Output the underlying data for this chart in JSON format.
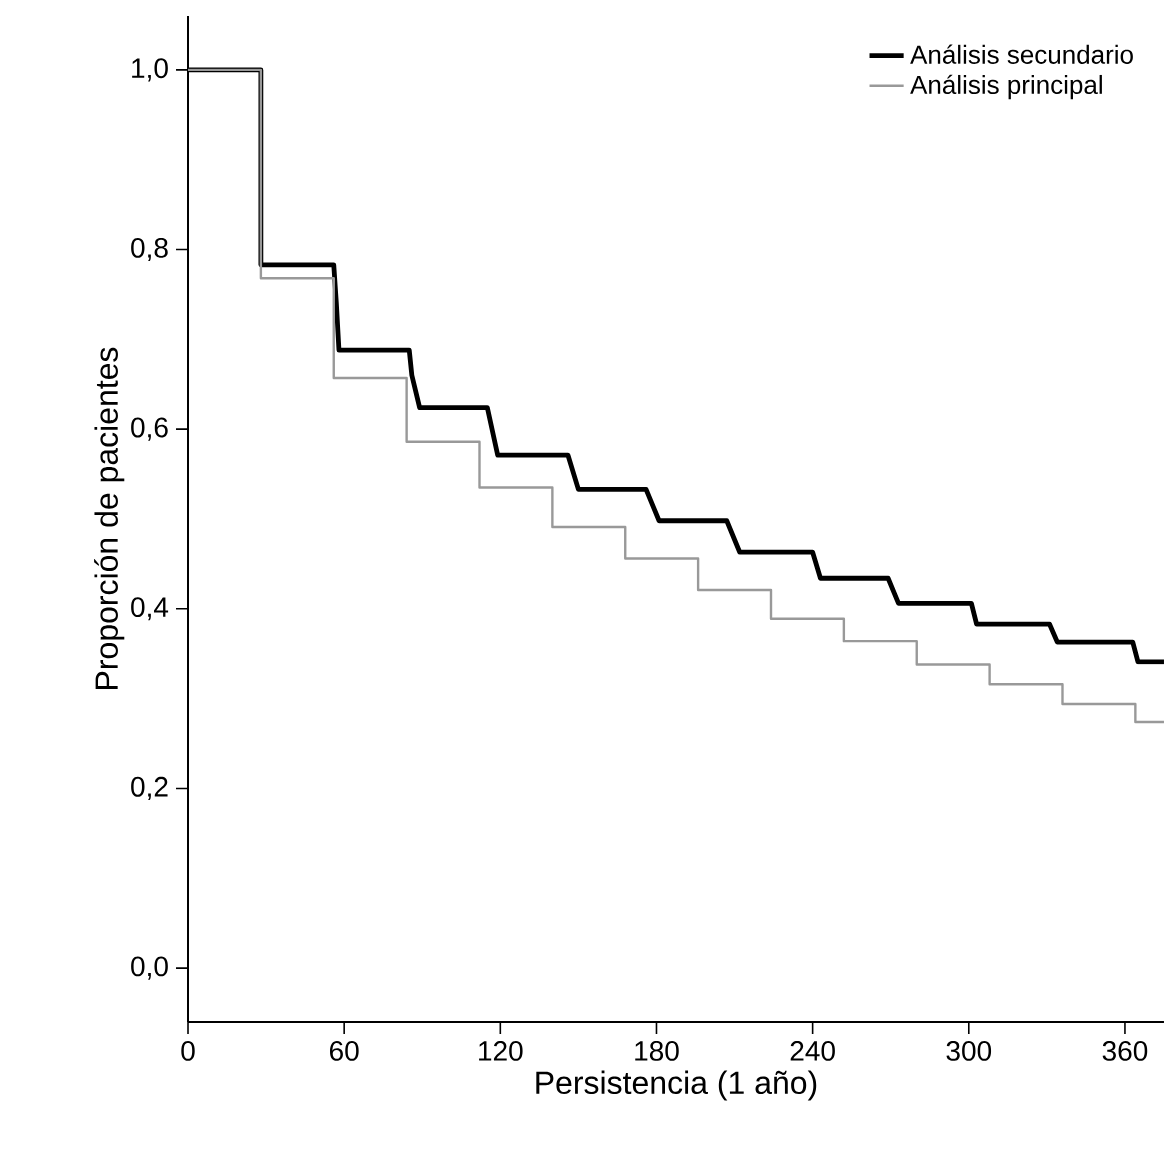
{
  "chart_data": {
    "type": "step",
    "xlabel": "Persistencia (1 año)",
    "ylabel": "Proporción de pacientes",
    "xlim": [
      0,
      375
    ],
    "ylim": [
      -0.06,
      1.06
    ],
    "xticks": [
      0,
      60,
      120,
      180,
      240,
      300,
      360
    ],
    "yticks": [
      {
        "value": 0,
        "label": "0,0"
      },
      {
        "value": 0.2,
        "label": "0,2"
      },
      {
        "value": 0.4,
        "label": "0,4"
      },
      {
        "value": 0.6,
        "label": "0,6"
      },
      {
        "value": 0.8,
        "label": "0,8"
      },
      {
        "value": 1,
        "label": "1,0"
      }
    ],
    "legend": "top right",
    "grid": false,
    "series": [
      {
        "name": "Análisis secundario",
        "color": "#000000",
        "type": "line",
        "x": [
          0,
          28,
          28,
          56,
          57,
          58,
          85,
          86,
          89,
          115,
          119,
          146,
          150,
          176,
          181,
          207,
          212,
          240,
          243,
          269,
          273,
          301,
          303,
          331,
          334,
          363,
          365,
          375
        ],
        "values": [
          1,
          1,
          0.783,
          0.783,
          0.74,
          0.688,
          0.688,
          0.66,
          0.624,
          0.624,
          0.571,
          0.571,
          0.533,
          0.533,
          0.498,
          0.498,
          0.463,
          0.463,
          0.434,
          0.434,
          0.406,
          0.406,
          0.383,
          0.383,
          0.363,
          0.363,
          0.341,
          0.341
        ]
      },
      {
        "name": "Análisis principal",
        "color": "#999999",
        "x": [
          0,
          28,
          56,
          84,
          112,
          140,
          168,
          196,
          224,
          252,
          280,
          308,
          336,
          364,
          375
        ],
        "values": [
          1,
          0.768,
          0.657,
          0.586,
          0.535,
          0.491,
          0.456,
          0.421,
          0.389,
          0.364,
          0.338,
          0.316,
          0.294,
          0.274,
          0.274
        ]
      }
    ]
  }
}
